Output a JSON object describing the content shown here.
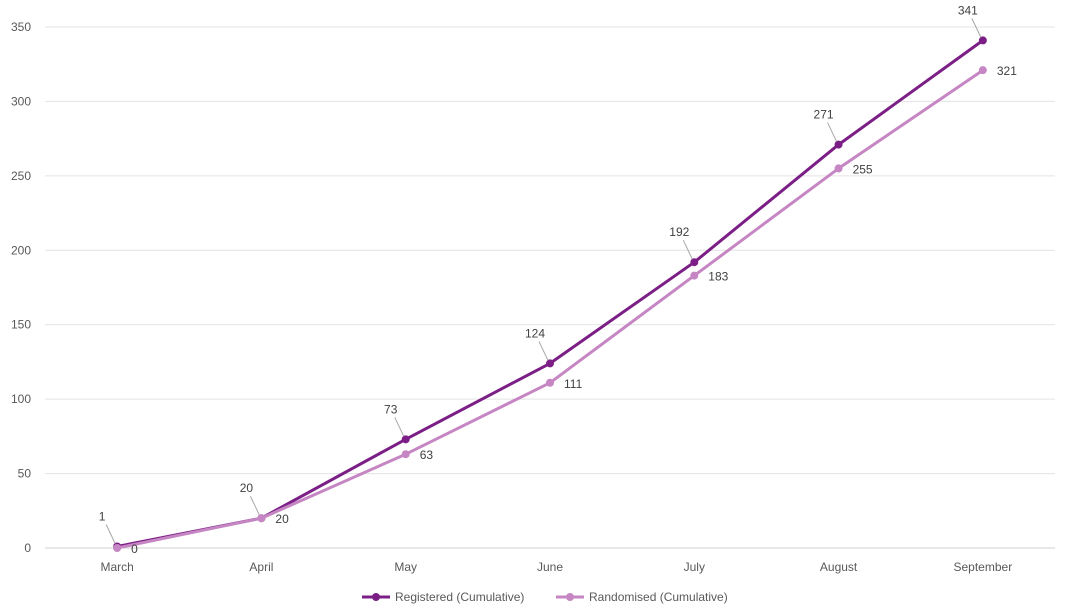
{
  "chart_data": {
    "type": "line",
    "title": "",
    "xlabel": "",
    "ylabel": "",
    "categories": [
      "March",
      "April",
      "May",
      "June",
      "July",
      "August",
      "September"
    ],
    "ylim": [
      0,
      350
    ],
    "yticks": [
      0,
      50,
      100,
      150,
      200,
      250,
      300,
      350
    ],
    "grid": true,
    "legend": "bottom",
    "series": [
      {
        "name": "Registered (Cumulative)",
        "color": "#7b1f86",
        "values": [
          1,
          20,
          73,
          124,
          192,
          271,
          341
        ]
      },
      {
        "name": "Randomised (Cumulative)",
        "color": "#c586c3",
        "values": [
          0,
          20,
          63,
          111,
          183,
          255,
          321
        ]
      }
    ]
  }
}
